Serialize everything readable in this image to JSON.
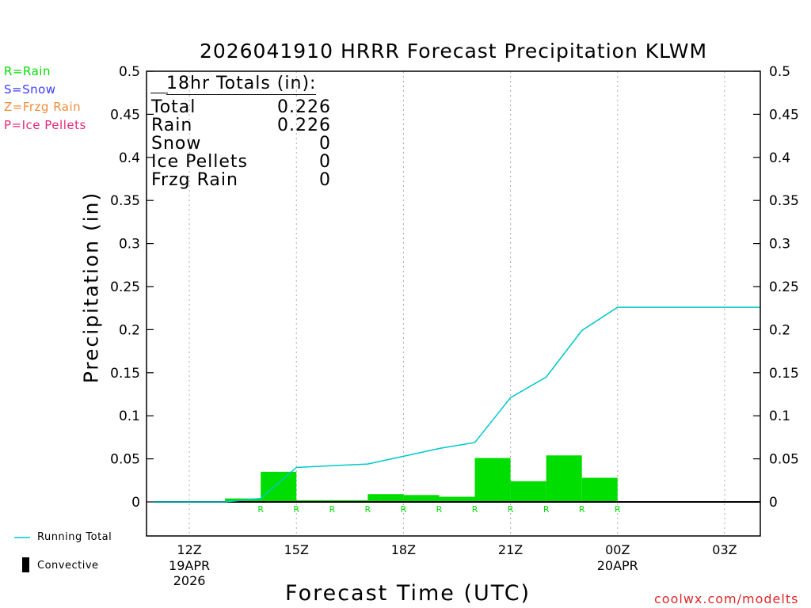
{
  "chart_data": {
    "type": "bar",
    "title": "2026041910 HRRR Forecast Precipitation KLWM",
    "xlabel": "Forecast Time (UTC)",
    "ylabel": "Precipitation (in)",
    "ylim": [
      -0.04,
      0.5
    ],
    "y_ticks": [
      "0.5",
      "0.45",
      "0.4",
      "0.35",
      "0.3",
      "0.25",
      "0.2",
      "0.15",
      "0.1",
      "0.05",
      "0"
    ],
    "x_ticks": [
      {
        "label": "12Z",
        "sub1": "19APR",
        "sub2": "2026",
        "hour": 12
      },
      {
        "label": "15Z",
        "sub1": "",
        "sub2": "",
        "hour": 15
      },
      {
        "label": "18Z",
        "sub1": "",
        "sub2": "",
        "hour": 18
      },
      {
        "label": "21Z",
        "sub1": "",
        "sub2": "",
        "hour": 21
      },
      {
        "label": "00Z",
        "sub1": "20APR",
        "sub2": "",
        "hour": 24
      },
      {
        "label": "03Z",
        "sub1": "",
        "sub2": "",
        "hour": 27
      }
    ],
    "xlim": [
      10.8,
      28
    ],
    "hourly_bars": {
      "hour": [
        14,
        15,
        16,
        17,
        18,
        19,
        20,
        21,
        22,
        23,
        24
      ],
      "values": [
        0.004,
        0.035,
        0.002,
        0.002,
        0.009,
        0.008,
        0.006,
        0.051,
        0.024,
        0.054,
        0.028
      ],
      "type_code": [
        "R",
        "R",
        "R",
        "R",
        "R",
        "R",
        "R",
        "R",
        "R",
        "R",
        "R"
      ],
      "color": "#00dd00"
    },
    "running_total": {
      "name": "Running Total",
      "x": [
        11,
        12,
        13,
        14,
        15,
        16,
        17,
        18,
        19,
        20,
        21,
        22,
        23,
        24,
        25,
        26,
        27,
        28
      ],
      "y": [
        0,
        0,
        0,
        0.004,
        0.04,
        0.042,
        0.044,
        0.053,
        0.062,
        0.069,
        0.121,
        0.145,
        0.199,
        0.226,
        0.226,
        0.226,
        0.226,
        0.226
      ],
      "color": "#00c8c8"
    },
    "zero_line": {
      "x_start": 11,
      "x_end": 28
    }
  },
  "totals": {
    "header": "18hr Totals (in):",
    "rows": [
      {
        "label": "Total",
        "value": "0.226"
      },
      {
        "label": "Rain",
        "value": "0.226"
      },
      {
        "label": "Snow",
        "value": "0"
      },
      {
        "label": "Ice Pellets",
        "value": "0"
      },
      {
        "label": "Frzg Rain",
        "value": "0"
      }
    ]
  },
  "type_legend": [
    {
      "text": "R=Rain",
      "color": "#00dd00"
    },
    {
      "text": "S=Snow",
      "color": "#3c3cff"
    },
    {
      "text": "Z=Frzg Rain",
      "color": "#f08c3c"
    },
    {
      "text": "P=Ice Pellets",
      "color": "#e6287a"
    }
  ],
  "bottom_legend": {
    "running_total": "Running Total",
    "convective": "Convective"
  },
  "credit": "coolwx.com/modelts",
  "colors": {
    "credit": "#dc2828",
    "gridline": "#aaaaaa"
  }
}
